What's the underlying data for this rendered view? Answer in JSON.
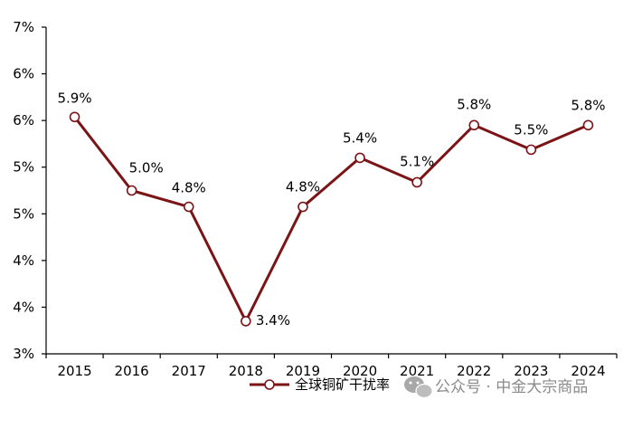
{
  "chart_data": {
    "type": "line",
    "categories": [
      "2015",
      "2016",
      "2017",
      "2018",
      "2019",
      "2020",
      "2021",
      "2022",
      "2023",
      "2024"
    ],
    "series": [
      {
        "name": "全球铜矿干扰率",
        "values": [
          5.9,
          5.0,
          4.8,
          3.4,
          4.8,
          5.4,
          5.1,
          5.8,
          5.5,
          5.8
        ],
        "labels": [
          "5.9%",
          "5.0%",
          "4.8%",
          "3.4%",
          "4.8%",
          "5.4%",
          "5.1%",
          "5.8%",
          "5.5%",
          "5.8%"
        ]
      }
    ],
    "ylim": [
      3,
      7
    ],
    "yticks": [
      "7%",
      "6%",
      "6%",
      "5%",
      "5%",
      "4%",
      "4%",
      "3%"
    ],
    "grid": false,
    "legend_position": "bottom",
    "line_color": "#7b1416",
    "marker_fill": "#ffffff"
  },
  "watermark": {
    "text": "公众号 · 中金大宗商品",
    "icon": "wechat-icon"
  }
}
